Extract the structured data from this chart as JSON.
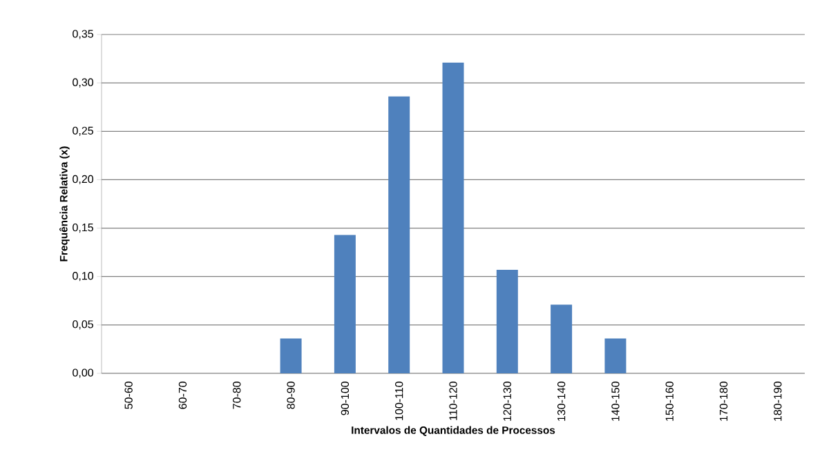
{
  "chart_data": {
    "type": "bar",
    "xlabel": "Intervalos de Quantidades de Processos",
    "ylabel": "Frequência Relativa (x)",
    "categories": [
      "50-60",
      "60-70",
      "70-80",
      "80-90",
      "90-100",
      "100-110",
      "110-120",
      "120-130",
      "130-140",
      "140-150",
      "150-160",
      "170-180",
      "180-190"
    ],
    "values": [
      0,
      0,
      0,
      0.036,
      0.143,
      0.286,
      0.321,
      0.107,
      0.071,
      0.036,
      0,
      0,
      0
    ],
    "color": "#4f81bd",
    "ylim": [
      0,
      0.35
    ],
    "yticks": [
      {
        "value": 0,
        "label": "0,00"
      },
      {
        "value": 0.05,
        "label": "0,05"
      },
      {
        "value": 0.1,
        "label": "0,10"
      },
      {
        "value": 0.15,
        "label": "0,15"
      },
      {
        "value": 0.2,
        "label": "0,20"
      },
      {
        "value": 0.25,
        "label": "0,25"
      },
      {
        "value": 0.3,
        "label": "0,30"
      },
      {
        "value": 0.35,
        "label": "0,35"
      }
    ],
    "grid": "y"
  }
}
